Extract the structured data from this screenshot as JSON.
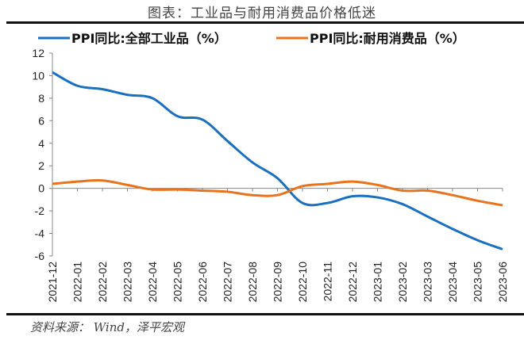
{
  "chart_data": {
    "type": "line",
    "title": "图表：工业品与耐用消费品价格低迷",
    "source": "资料来源： Wind，泽平宏观",
    "categories": [
      "2021-12",
      "2022-01",
      "2022-02",
      "2022-03",
      "2022-04",
      "2022-05",
      "2022-06",
      "2022-07",
      "2022-08",
      "2022-09",
      "2022-10",
      "2022-11",
      "2022-12",
      "2023-01",
      "2023-02",
      "2023-03",
      "2023-04",
      "2023-05",
      "2023-06"
    ],
    "series": [
      {
        "name": "PPI同比:全部工业品（%）",
        "color": "#1a6fbf",
        "values": [
          10.3,
          9.1,
          8.8,
          8.3,
          8.0,
          6.4,
          6.1,
          4.2,
          2.3,
          0.9,
          -1.3,
          -1.3,
          -0.7,
          -0.8,
          -1.4,
          -2.5,
          -3.6,
          -4.6,
          -5.4
        ]
      },
      {
        "name": "PPI同比:耐用消费品（%）",
        "color": "#e8731c",
        "values": [
          0.4,
          0.6,
          0.7,
          0.3,
          -0.1,
          -0.1,
          -0.2,
          -0.3,
          -0.6,
          -0.6,
          0.2,
          0.4,
          0.6,
          0.3,
          -0.2,
          -0.2,
          -0.6,
          -1.1,
          -1.5
        ]
      }
    ],
    "ylim": [
      -6,
      12
    ],
    "yticks": [
      12,
      10,
      8,
      6,
      4,
      2,
      0,
      -2,
      -4,
      -6
    ],
    "grid": false,
    "legend": "top"
  }
}
